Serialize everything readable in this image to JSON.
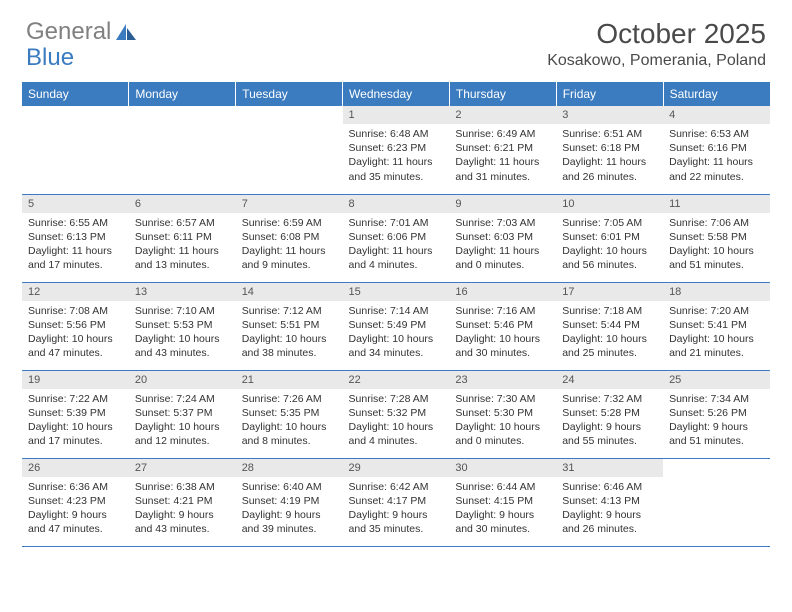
{
  "logo": {
    "part1": "General",
    "part2": "Blue"
  },
  "title": "October 2025",
  "location": "Kosakowo, Pomerania, Poland",
  "colors": {
    "header_bg": "#3b7bbf",
    "header_text": "#ffffff",
    "daynum_bg": "#e9e9e9",
    "daynum_text": "#555555",
    "body_text": "#333333",
    "rule": "#3b7bbf"
  },
  "day_names": [
    "Sunday",
    "Monday",
    "Tuesday",
    "Wednesday",
    "Thursday",
    "Friday",
    "Saturday"
  ],
  "weeks": [
    [
      null,
      null,
      null,
      {
        "n": "1",
        "sr": "6:48 AM",
        "ss": "6:23 PM",
        "dl": "11 hours and 35 minutes."
      },
      {
        "n": "2",
        "sr": "6:49 AM",
        "ss": "6:21 PM",
        "dl": "11 hours and 31 minutes."
      },
      {
        "n": "3",
        "sr": "6:51 AM",
        "ss": "6:18 PM",
        "dl": "11 hours and 26 minutes."
      },
      {
        "n": "4",
        "sr": "6:53 AM",
        "ss": "6:16 PM",
        "dl": "11 hours and 22 minutes."
      }
    ],
    [
      {
        "n": "5",
        "sr": "6:55 AM",
        "ss": "6:13 PM",
        "dl": "11 hours and 17 minutes."
      },
      {
        "n": "6",
        "sr": "6:57 AM",
        "ss": "6:11 PM",
        "dl": "11 hours and 13 minutes."
      },
      {
        "n": "7",
        "sr": "6:59 AM",
        "ss": "6:08 PM",
        "dl": "11 hours and 9 minutes."
      },
      {
        "n": "8",
        "sr": "7:01 AM",
        "ss": "6:06 PM",
        "dl": "11 hours and 4 minutes."
      },
      {
        "n": "9",
        "sr": "7:03 AM",
        "ss": "6:03 PM",
        "dl": "11 hours and 0 minutes."
      },
      {
        "n": "10",
        "sr": "7:05 AM",
        "ss": "6:01 PM",
        "dl": "10 hours and 56 minutes."
      },
      {
        "n": "11",
        "sr": "7:06 AM",
        "ss": "5:58 PM",
        "dl": "10 hours and 51 minutes."
      }
    ],
    [
      {
        "n": "12",
        "sr": "7:08 AM",
        "ss": "5:56 PM",
        "dl": "10 hours and 47 minutes."
      },
      {
        "n": "13",
        "sr": "7:10 AM",
        "ss": "5:53 PM",
        "dl": "10 hours and 43 minutes."
      },
      {
        "n": "14",
        "sr": "7:12 AM",
        "ss": "5:51 PM",
        "dl": "10 hours and 38 minutes."
      },
      {
        "n": "15",
        "sr": "7:14 AM",
        "ss": "5:49 PM",
        "dl": "10 hours and 34 minutes."
      },
      {
        "n": "16",
        "sr": "7:16 AM",
        "ss": "5:46 PM",
        "dl": "10 hours and 30 minutes."
      },
      {
        "n": "17",
        "sr": "7:18 AM",
        "ss": "5:44 PM",
        "dl": "10 hours and 25 minutes."
      },
      {
        "n": "18",
        "sr": "7:20 AM",
        "ss": "5:41 PM",
        "dl": "10 hours and 21 minutes."
      }
    ],
    [
      {
        "n": "19",
        "sr": "7:22 AM",
        "ss": "5:39 PM",
        "dl": "10 hours and 17 minutes."
      },
      {
        "n": "20",
        "sr": "7:24 AM",
        "ss": "5:37 PM",
        "dl": "10 hours and 12 minutes."
      },
      {
        "n": "21",
        "sr": "7:26 AM",
        "ss": "5:35 PM",
        "dl": "10 hours and 8 minutes."
      },
      {
        "n": "22",
        "sr": "7:28 AM",
        "ss": "5:32 PM",
        "dl": "10 hours and 4 minutes."
      },
      {
        "n": "23",
        "sr": "7:30 AM",
        "ss": "5:30 PM",
        "dl": "10 hours and 0 minutes."
      },
      {
        "n": "24",
        "sr": "7:32 AM",
        "ss": "5:28 PM",
        "dl": "9 hours and 55 minutes."
      },
      {
        "n": "25",
        "sr": "7:34 AM",
        "ss": "5:26 PM",
        "dl": "9 hours and 51 minutes."
      }
    ],
    [
      {
        "n": "26",
        "sr": "6:36 AM",
        "ss": "4:23 PM",
        "dl": "9 hours and 47 minutes."
      },
      {
        "n": "27",
        "sr": "6:38 AM",
        "ss": "4:21 PM",
        "dl": "9 hours and 43 minutes."
      },
      {
        "n": "28",
        "sr": "6:40 AM",
        "ss": "4:19 PM",
        "dl": "9 hours and 39 minutes."
      },
      {
        "n": "29",
        "sr": "6:42 AM",
        "ss": "4:17 PM",
        "dl": "9 hours and 35 minutes."
      },
      {
        "n": "30",
        "sr": "6:44 AM",
        "ss": "4:15 PM",
        "dl": "9 hours and 30 minutes."
      },
      {
        "n": "31",
        "sr": "6:46 AM",
        "ss": "4:13 PM",
        "dl": "9 hours and 26 minutes."
      },
      null
    ]
  ],
  "labels": {
    "sunrise": "Sunrise:",
    "sunset": "Sunset:",
    "daylight": "Daylight:"
  }
}
